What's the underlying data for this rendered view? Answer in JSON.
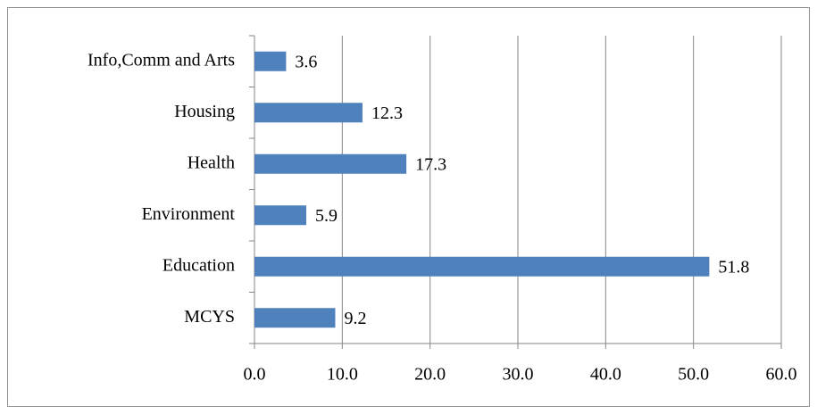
{
  "chart_data": {
    "type": "bar",
    "orientation": "horizontal",
    "categories": [
      "Info,Comm and Arts",
      "Housing",
      "Health",
      "Environment",
      "Education",
      "MCYS"
    ],
    "values": [
      3.6,
      12.3,
      17.3,
      5.9,
      51.8,
      9.2
    ],
    "color": "#4f81bd",
    "xlim": [
      0,
      60
    ],
    "xticks": [
      {
        "value": 0,
        "label": "0.0"
      },
      {
        "value": 10,
        "label": "10.0"
      },
      {
        "value": 20,
        "label": "20.0"
      },
      {
        "value": 30,
        "label": "30.0"
      },
      {
        "value": 40,
        "label": "40.0"
      },
      {
        "value": 50,
        "label": "50.0"
      },
      {
        "value": 60,
        "label": "60.0"
      }
    ],
    "grid": true
  }
}
